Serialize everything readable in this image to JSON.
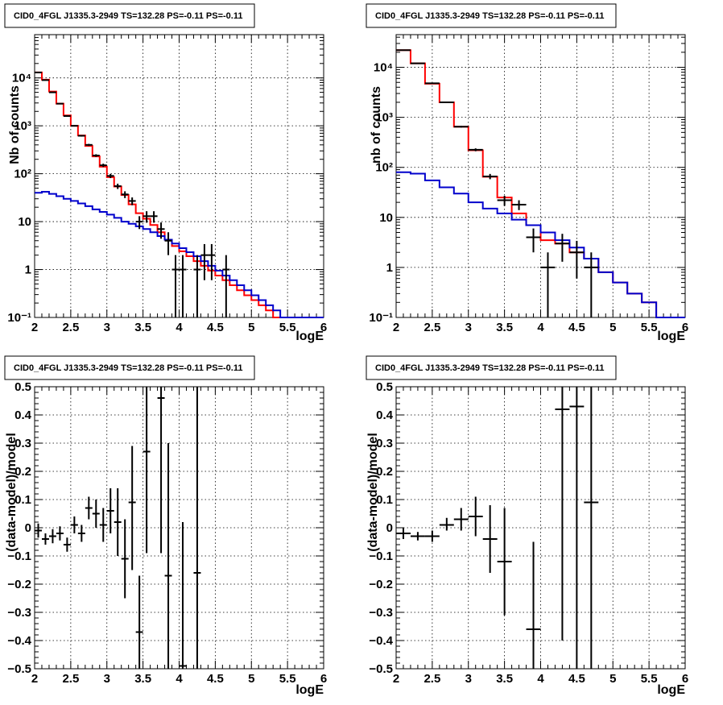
{
  "chart_data": [
    {
      "type": "line",
      "title": "CID0_4FGL J1335.3-2949 TS=132.28 PS=-0.11 PS=-0.11",
      "xlabel": "logE",
      "ylabel": "Nb of counts",
      "xlim": [
        2,
        6
      ],
      "ylim": [
        0.1,
        80000
      ],
      "ylog": true,
      "grid": true,
      "x_ticks": [
        "2",
        "2.5",
        "3",
        "3.5",
        "4",
        "4.5",
        "5",
        "5.5",
        "6"
      ],
      "y_ticks": [
        "10⁻¹",
        "1",
        "10",
        "10²",
        "10³",
        "10⁴"
      ],
      "bin_edges": [
        2.0,
        2.1,
        2.2,
        2.3,
        2.4,
        2.5,
        2.6,
        2.7,
        2.8,
        2.9,
        3.0,
        3.1,
        3.2,
        3.3,
        3.4,
        3.5,
        3.6,
        3.7,
        3.8,
        3.9,
        4.0,
        4.1,
        4.2,
        4.3,
        4.4,
        4.5,
        4.6,
        4.7,
        4.8,
        4.9,
        5.0,
        5.1,
        5.2,
        5.3,
        5.4,
        5.5,
        5.6,
        5.7,
        5.8,
        5.9,
        6.0
      ],
      "series": [
        {
          "color": "#ff0000",
          "values": [
            13000,
            9200,
            5200,
            2900,
            1650,
            1000,
            630,
            380,
            230,
            140,
            85,
            54,
            36,
            23,
            15,
            11.5,
            8.5,
            6,
            4.2,
            3.1,
            2.4,
            1.9,
            1.5,
            1.2,
            0.95,
            0.75,
            0.6,
            0.47,
            0.37,
            0.29,
            0.23,
            0.18,
            0.14,
            0.1,
            0.1,
            0.1,
            0.1,
            0.1,
            0.1,
            0.1
          ]
        },
        {
          "color": "#0000cc",
          "values": [
            40,
            42,
            38,
            34,
            30,
            27,
            24,
            21,
            18,
            16,
            14,
            12,
            10,
            9,
            8,
            7,
            6,
            5,
            4.2,
            3.5,
            2.8,
            2.3,
            1.9,
            1.5,
            1.2,
            0.95,
            0.75,
            0.6,
            0.47,
            0.37,
            0.29,
            0.23,
            0.18,
            0.14,
            0.1,
            0.1,
            0.1,
            0.1,
            0.1,
            0.1
          ]
        }
      ],
      "points": [
        {
          "x": 2.05,
          "y": 13000,
          "lo": 12800,
          "hi": 13200
        },
        {
          "x": 2.15,
          "y": 9000,
          "lo": 8900,
          "hi": 9100
        },
        {
          "x": 2.25,
          "y": 5000,
          "lo": 4930,
          "hi": 5070
        },
        {
          "x": 2.35,
          "y": 2900,
          "lo": 2850,
          "hi": 2950
        },
        {
          "x": 2.45,
          "y": 1600,
          "lo": 1560,
          "hi": 1640
        },
        {
          "x": 2.55,
          "y": 1000,
          "lo": 970,
          "hi": 1030
        },
        {
          "x": 2.65,
          "y": 620,
          "lo": 595,
          "hi": 645
        },
        {
          "x": 2.75,
          "y": 400,
          "lo": 380,
          "hi": 420
        },
        {
          "x": 2.85,
          "y": 240,
          "lo": 225,
          "hi": 255
        },
        {
          "x": 2.95,
          "y": 150,
          "lo": 138,
          "hi": 162
        },
        {
          "x": 3.05,
          "y": 90,
          "lo": 81,
          "hi": 99
        },
        {
          "x": 3.15,
          "y": 55,
          "lo": 48,
          "hi": 62
        },
        {
          "x": 3.25,
          "y": 37,
          "lo": 31,
          "hi": 43
        },
        {
          "x": 3.35,
          "y": 27,
          "lo": 22,
          "hi": 32
        },
        {
          "x": 3.45,
          "y": 10,
          "lo": 7,
          "hi": 13
        },
        {
          "x": 3.55,
          "y": 13,
          "lo": 9.5,
          "hi": 16.5
        },
        {
          "x": 3.65,
          "y": 13,
          "lo": 9.5,
          "hi": 16.5
        },
        {
          "x": 3.75,
          "y": 7,
          "lo": 4.4,
          "hi": 9.6
        },
        {
          "x": 3.85,
          "y": 4,
          "lo": 2,
          "hi": 6
        },
        {
          "x": 3.95,
          "y": 1,
          "lo": 0.1,
          "hi": 2
        },
        {
          "x": 4.05,
          "y": 1,
          "lo": 0.1,
          "hi": 2
        },
        {
          "x": 4.25,
          "y": 1,
          "lo": 0.1,
          "hi": 2
        },
        {
          "x": 4.35,
          "y": 2,
          "lo": 0.6,
          "hi": 3.4
        },
        {
          "x": 4.45,
          "y": 2,
          "lo": 0.6,
          "hi": 3.4
        },
        {
          "x": 4.65,
          "y": 1,
          "lo": 0.1,
          "hi": 2
        }
      ]
    },
    {
      "type": "line",
      "title": "CID0_4FGL J1335.3-2949 TS=132.28 PS=-0.11 PS=-0.11",
      "xlabel": "logE",
      "ylabel": "nb of counts",
      "xlim": [
        2,
        6
      ],
      "ylim": [
        0.1,
        45000
      ],
      "ylog": true,
      "grid": true,
      "x_ticks": [
        "2",
        "2.5",
        "3",
        "3.5",
        "4",
        "4.5",
        "5",
        "5.5",
        "6"
      ],
      "y_ticks": [
        "10⁻¹",
        "1",
        "10",
        "10²",
        "10³",
        "10⁴"
      ],
      "bin_edges": [
        2.0,
        2.2,
        2.4,
        2.6,
        2.8,
        3.0,
        3.2,
        3.4,
        3.6,
        3.8,
        4.0,
        4.2,
        4.4,
        4.6,
        4.8,
        5.0,
        5.2,
        5.4,
        5.6,
        5.8,
        6.0
      ],
      "series": [
        {
          "color": "#ff0000",
          "values": [
            22000,
            12000,
            4700,
            2000,
            650,
            220,
            65,
            25,
            12,
            7,
            3.5,
            3,
            2,
            1.5,
            0.8,
            0.5,
            0.3,
            0.2,
            0.1,
            0.1
          ]
        },
        {
          "color": "#0000cc",
          "values": [
            80,
            75,
            55,
            40,
            30,
            20,
            15,
            12,
            9,
            7,
            5,
            3.5,
            2.5,
            1.5,
            0.8,
            0.5,
            0.3,
            0.2,
            0.1,
            0.1
          ]
        }
      ],
      "points": [
        {
          "x": 2.1,
          "y": 22000,
          "lo": 21700,
          "hi": 22300
        },
        {
          "x": 2.3,
          "y": 12000,
          "lo": 11800,
          "hi": 12200
        },
        {
          "x": 2.5,
          "y": 4800,
          "lo": 4700,
          "hi": 4900
        },
        {
          "x": 2.7,
          "y": 2000,
          "lo": 1950,
          "hi": 2050
        },
        {
          "x": 2.9,
          "y": 650,
          "lo": 625,
          "hi": 675
        },
        {
          "x": 3.1,
          "y": 225,
          "lo": 210,
          "hi": 240
        },
        {
          "x": 3.3,
          "y": 66,
          "lo": 58,
          "hi": 74
        },
        {
          "x": 3.5,
          "y": 22,
          "lo": 17,
          "hi": 27
        },
        {
          "x": 3.7,
          "y": 18,
          "lo": 14,
          "hi": 22
        },
        {
          "x": 3.9,
          "y": 4,
          "lo": 2,
          "hi": 6
        },
        {
          "x": 4.1,
          "y": 1,
          "lo": 0.1,
          "hi": 2
        },
        {
          "x": 4.3,
          "y": 3,
          "lo": 1.3,
          "hi": 4.7
        },
        {
          "x": 4.5,
          "y": 2,
          "lo": 0.6,
          "hi": 3.4
        },
        {
          "x": 4.7,
          "y": 1,
          "lo": 0.1,
          "hi": 2
        }
      ]
    },
    {
      "type": "scatter",
      "title": "CID0_4FGL J1335.3-2949 TS=132.28 PS=-0.11 PS=-0.11",
      "xlabel": "logE",
      "ylabel": "(data-model)/model",
      "xlim": [
        2,
        6
      ],
      "ylim": [
        -0.5,
        0.5
      ],
      "grid": true,
      "x_ticks": [
        "2",
        "2.5",
        "3",
        "3.5",
        "4",
        "4.5",
        "5",
        "5.5",
        "6"
      ],
      "y_ticks": [
        "−0.5",
        "−0.4",
        "−0.3",
        "−0.2",
        "−0.1",
        "0",
        "0.1",
        "0.2",
        "0.3",
        "0.4",
        "0.5"
      ],
      "y_tick_values": [
        -0.5,
        -0.4,
        -0.3,
        -0.2,
        -0.1,
        0,
        0.1,
        0.2,
        0.3,
        0.4,
        0.5
      ],
      "bin_width": 0.1,
      "points": [
        {
          "x": 2.05,
          "y": -0.01,
          "lo": -0.035,
          "hi": 0.015
        },
        {
          "x": 2.15,
          "y": -0.04,
          "lo": -0.06,
          "hi": -0.02
        },
        {
          "x": 2.25,
          "y": -0.03,
          "lo": -0.055,
          "hi": -0.005
        },
        {
          "x": 2.35,
          "y": -0.02,
          "lo": -0.045,
          "hi": 0.005
        },
        {
          "x": 2.45,
          "y": -0.06,
          "lo": -0.085,
          "hi": -0.035
        },
        {
          "x": 2.55,
          "y": 0.01,
          "lo": -0.02,
          "hi": 0.04
        },
        {
          "x": 2.65,
          "y": -0.02,
          "lo": -0.05,
          "hi": 0.01
        },
        {
          "x": 2.75,
          "y": 0.07,
          "lo": 0.03,
          "hi": 0.11
        },
        {
          "x": 2.85,
          "y": 0.05,
          "lo": 0.0,
          "hi": 0.1
        },
        {
          "x": 2.95,
          "y": 0.01,
          "lo": -0.05,
          "hi": 0.07
        },
        {
          "x": 3.05,
          "y": 0.06,
          "lo": -0.02,
          "hi": 0.14
        },
        {
          "x": 3.15,
          "y": 0.02,
          "lo": -0.1,
          "hi": 0.14
        },
        {
          "x": 3.25,
          "y": -0.11,
          "lo": -0.25,
          "hi": 0.03
        },
        {
          "x": 3.35,
          "y": 0.09,
          "lo": -0.15,
          "hi": 0.29
        },
        {
          "x": 3.45,
          "y": -0.37,
          "lo": -0.5,
          "hi": -0.17
        },
        {
          "x": 3.55,
          "y": 0.27,
          "lo": -0.09,
          "hi": 0.5
        },
        {
          "x": 3.75,
          "y": 0.46,
          "lo": -0.09,
          "hi": 0.5
        },
        {
          "x": 3.85,
          "y": -0.17,
          "lo": -0.5,
          "hi": 0.3
        },
        {
          "x": 4.05,
          "y": -0.49,
          "lo": -0.5,
          "hi": 0.02
        },
        {
          "x": 4.25,
          "y": -0.16,
          "lo": -0.5,
          "hi": 0.5
        }
      ]
    },
    {
      "type": "scatter",
      "title": "CID0_4FGL J1335.3-2949 TS=132.28 PS=-0.11 PS=-0.11",
      "xlabel": "logE",
      "ylabel": "(data-model)/model",
      "xlim": [
        2,
        6
      ],
      "ylim": [
        -0.5,
        0.5
      ],
      "grid": true,
      "x_ticks": [
        "2",
        "2.5",
        "3",
        "3.5",
        "4",
        "4.5",
        "5",
        "5.5",
        "6"
      ],
      "y_ticks": [
        "−0.5",
        "−0.4",
        "−0.3",
        "−0.2",
        "−0.1",
        "0",
        "0.1",
        "0.2",
        "0.3",
        "0.4",
        "0.5"
      ],
      "y_tick_values": [
        -0.5,
        -0.4,
        -0.3,
        -0.2,
        -0.1,
        0,
        0.1,
        0.2,
        0.3,
        0.4,
        0.5
      ],
      "bin_width": 0.2,
      "points": [
        {
          "x": 2.1,
          "y": -0.02,
          "lo": -0.04,
          "hi": 0.0
        },
        {
          "x": 2.3,
          "y": -0.03,
          "lo": -0.045,
          "hi": -0.015
        },
        {
          "x": 2.5,
          "y": -0.03,
          "lo": -0.05,
          "hi": -0.01
        },
        {
          "x": 2.7,
          "y": 0.01,
          "lo": -0.01,
          "hi": 0.035
        },
        {
          "x": 2.9,
          "y": 0.03,
          "lo": -0.01,
          "hi": 0.07
        },
        {
          "x": 3.1,
          "y": 0.04,
          "lo": -0.03,
          "hi": 0.11
        },
        {
          "x": 3.3,
          "y": -0.04,
          "lo": -0.16,
          "hi": 0.08
        },
        {
          "x": 3.5,
          "y": -0.12,
          "lo": -0.31,
          "hi": 0.07
        },
        {
          "x": 3.9,
          "y": -0.36,
          "lo": -0.5,
          "hi": -0.05
        },
        {
          "x": 4.3,
          "y": 0.42,
          "lo": -0.4,
          "hi": 0.5
        },
        {
          "x": 4.5,
          "y": 0.43,
          "lo": -0.5,
          "hi": 0.5
        },
        {
          "x": 4.7,
          "y": 0.09,
          "lo": -0.5,
          "hi": 0.5
        }
      ]
    }
  ]
}
